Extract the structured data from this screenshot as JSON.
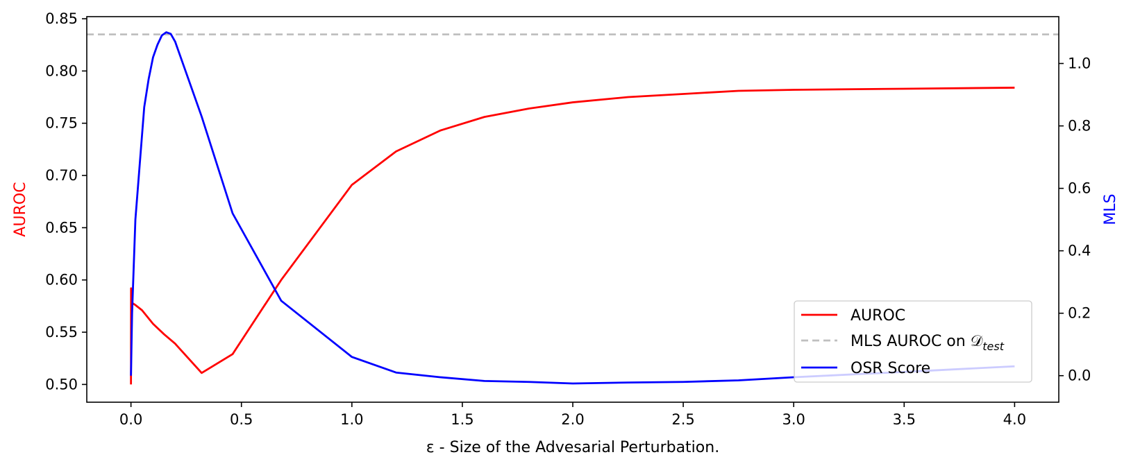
{
  "chart_data": {
    "type": "line",
    "title": "",
    "xlabel": "ε - Size of the Advesarial Perturbation.",
    "ylabel_left": "AUROC",
    "ylabel_right": "MLS",
    "xlim": [
      -0.2,
      4.2
    ],
    "ylim_left": [
      0.483,
      0.852
    ],
    "ylim_right": [
      -0.085,
      1.15
    ],
    "x_ticks": [
      "0.0",
      "0.5",
      "1.0",
      "1.5",
      "2.0",
      "2.5",
      "3.0",
      "3.5",
      "4.0"
    ],
    "y_ticks_left": [
      "0.50",
      "0.55",
      "0.60",
      "0.65",
      "0.70",
      "0.75",
      "0.80",
      "0.85"
    ],
    "y_ticks_right": [
      "0.0",
      "0.2",
      "0.4",
      "0.6",
      "0.8",
      "1.0"
    ],
    "grid": false,
    "legend_position": "bottom-right",
    "colors": {
      "auroc": "#ff0000",
      "mls_auroc": "#bfbfbf",
      "osr": "#0000ff",
      "left_label": "#ff0000",
      "right_label": "#0000ff"
    },
    "series": [
      {
        "name": "AUROC",
        "axis": "left",
        "style": "solid",
        "x": [
          0.0,
          0.0005,
          0.001,
          0.005,
          0.02,
          0.05,
          0.1,
          0.15,
          0.2,
          0.32,
          0.46,
          0.68,
          1.0,
          1.2,
          1.4,
          1.6,
          1.8,
          2.0,
          2.25,
          2.5,
          2.75,
          3.0,
          3.5,
          4.0
        ],
        "y": [
          0.5,
          0.592,
          0.581,
          0.578,
          0.576,
          0.571,
          0.558,
          0.548,
          0.539,
          0.511,
          0.529,
          0.6,
          0.691,
          0.723,
          0.743,
          0.756,
          0.764,
          0.77,
          0.775,
          0.778,
          0.781,
          0.782,
          0.783,
          0.784
        ]
      },
      {
        "name": "MLS AUROC on 𝒟test",
        "axis": "left",
        "style": "dashed",
        "constant": 0.835
      },
      {
        "name": "OSR Score",
        "axis": "right",
        "style": "solid",
        "x": [
          0.0,
          0.005,
          0.02,
          0.04,
          0.06,
          0.08,
          0.1,
          0.12,
          0.14,
          0.16,
          0.18,
          0.2,
          0.32,
          0.46,
          0.68,
          1.0,
          1.2,
          1.4,
          1.6,
          1.8,
          2.0,
          2.25,
          2.5,
          2.75,
          3.0,
          3.5,
          4.0
        ],
        "y": [
          0.0,
          0.2,
          0.5,
          0.68,
          0.86,
          0.95,
          1.02,
          1.06,
          1.09,
          1.1,
          1.095,
          1.07,
          0.83,
          0.52,
          0.24,
          0.06,
          0.01,
          -0.005,
          -0.017,
          -0.02,
          -0.025,
          -0.022,
          -0.02,
          -0.015,
          -0.005,
          0.012,
          0.03
        ]
      }
    ],
    "legend": {
      "entries": [
        "AUROC",
        "MLS AUROC on 𝒟",
        "OSR Score"
      ],
      "mls_subscript": "test"
    }
  }
}
